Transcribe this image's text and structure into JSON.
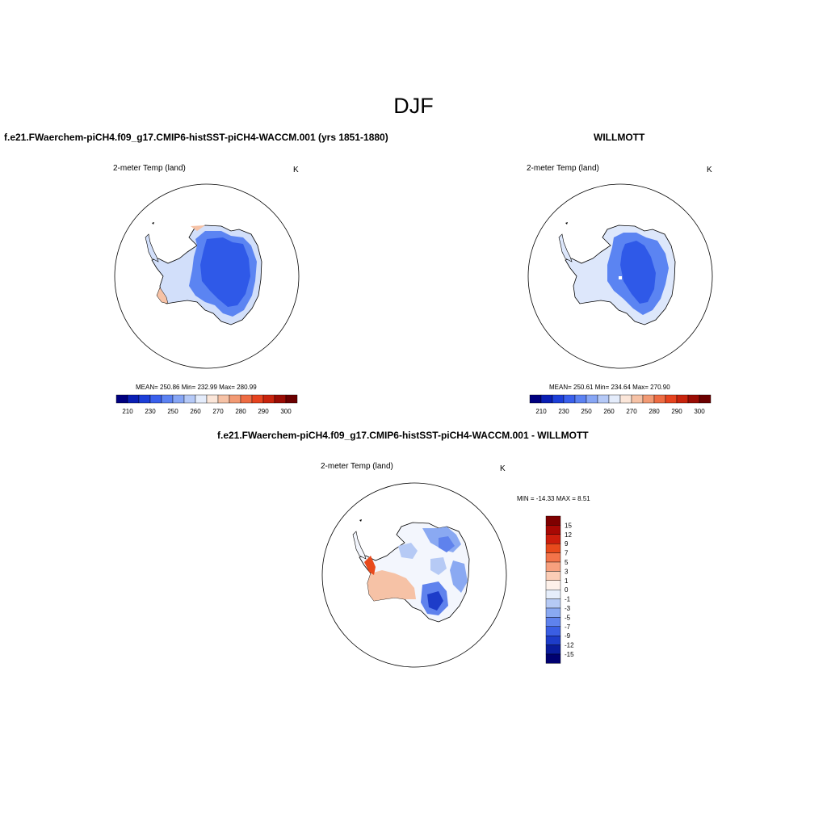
{
  "season": "DJF",
  "panels": {
    "model": {
      "header": "f.e21.FWaerchem-piCH4.f09_g17.CMIP6-histSST-piCH4-WACCM.001 (yrs 1851-1880)",
      "variable": "2-meter Temp (land)",
      "units": "K",
      "stats": "MEAN= 250.86  Min= 232.99  Max= 280.99",
      "colorbar_labels": [
        "210",
        "230",
        "250",
        "260",
        "270",
        "280",
        "290",
        "300"
      ]
    },
    "obs": {
      "header": "WILLMOTT",
      "variable": "2-meter Temp (land)",
      "units": "K",
      "stats": "MEAN= 250.61  Min= 234.64  Max= 270.90",
      "colorbar_labels": [
        "210",
        "230",
        "250",
        "260",
        "270",
        "280",
        "290",
        "300"
      ]
    },
    "diff": {
      "header": "f.e21.FWaerchem-piCH4.f09_g17.CMIP6-histSST-piCH4-WACCM.001 - WILLMOTT",
      "variable": "2-meter Temp (land)",
      "units": "K",
      "stats": "MIN = -14.33 MAX =   8.51",
      "colorbar_labels": [
        "15",
        "12",
        "9",
        "7",
        "5",
        "3",
        "1",
        "0",
        "-1",
        "-3",
        "-5",
        "-7",
        "-9",
        "-12",
        "-15"
      ]
    }
  },
  "colors": {
    "abs_scale": [
      "#00007f",
      "#0a1fb4",
      "#1d3fd8",
      "#3a60ec",
      "#5c82f2",
      "#87a6f5",
      "#b5c9f7",
      "#e4ecfb",
      "#fbe6d9",
      "#f6c2a6",
      "#f29a74",
      "#ee6c43",
      "#e6431f",
      "#c8240d",
      "#9a0c04",
      "#6b0000"
    ],
    "diff_scale": [
      "#7f0000",
      "#a80804",
      "#cc1d0c",
      "#e84a1c",
      "#f3744a",
      "#f7a07e",
      "#fbcdb6",
      "#fdf1ea",
      "#e6eefb",
      "#b6caf5",
      "#8aa9f2",
      "#5f82ed",
      "#3a5ee3",
      "#1d3cc9",
      "#0a1c9c",
      "#000070"
    ],
    "ice_core": "#2f59e8",
    "ice_mid": "#5b84f2",
    "ice_edge": "#d7e3fb"
  }
}
